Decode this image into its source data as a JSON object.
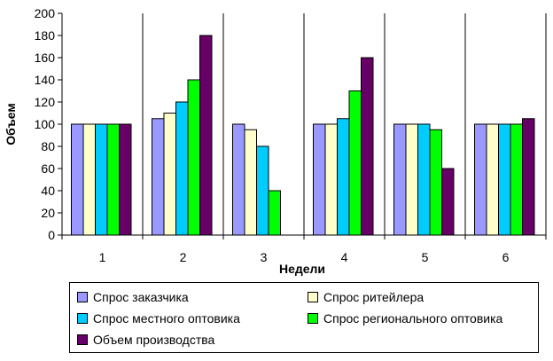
{
  "chart_data": {
    "type": "bar",
    "title": "",
    "xlabel": "Недели",
    "ylabel": "Объем",
    "categories": [
      "1",
      "2",
      "3",
      "4",
      "5",
      "6"
    ],
    "ylim": [
      0,
      200
    ],
    "yticks": [
      0,
      20,
      40,
      60,
      80,
      100,
      120,
      140,
      160,
      180,
      200
    ],
    "grid": false,
    "legend_position": "bottom",
    "series": [
      {
        "name": "Спрос заказчика",
        "color": "#9999FF",
        "values": [
          100,
          105,
          100,
          100,
          100,
          100
        ]
      },
      {
        "name": "Спрос ритейлера",
        "color": "#FFFFCC",
        "values": [
          100,
          110,
          95,
          100,
          100,
          100
        ]
      },
      {
        "name": "Спрос местного оптовика",
        "color": "#00CCFF",
        "values": [
          100,
          120,
          80,
          105,
          100,
          100
        ]
      },
      {
        "name": "Спрос регионального оптовика",
        "color": "#00FF00",
        "values": [
          100,
          140,
          40,
          130,
          95,
          100
        ]
      },
      {
        "name": "Объем производства",
        "color": "#660066",
        "values": [
          100,
          180,
          0,
          160,
          60,
          105
        ]
      }
    ]
  }
}
